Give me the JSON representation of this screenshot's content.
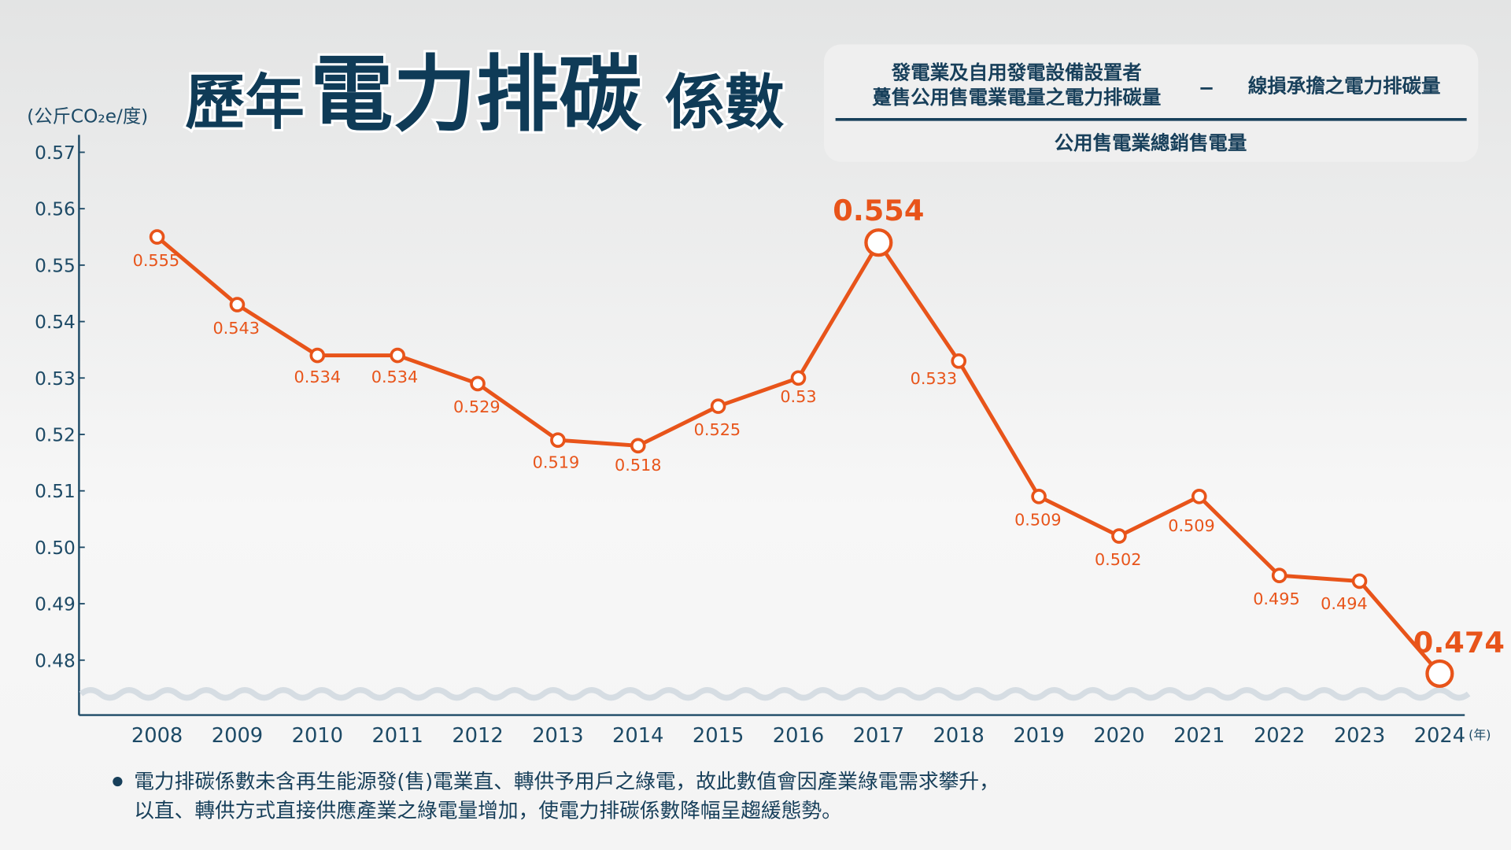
{
  "title": {
    "small1": "歷年",
    "big": "電力排碳",
    "small2": "係數"
  },
  "formula": {
    "numerator_line1": "發電業及自用發電設備設置者",
    "numerator_line2": "躉售公用售電業電量之電力排碳量",
    "minus": "−",
    "subtracted": "線損承擔之電力排碳量",
    "denominator": "公用售電業總銷售電量"
  },
  "notes": [
    "電力排碳係數未含再生能源發(售)電業直、轉供予用戶之綠電，故此數值會因產業綠電需求攀升，",
    "以直、轉供方式直接供應產業之綠電量增加，使電力排碳係數降幅呈趨緩態勢。"
  ],
  "colors": {
    "line": "#e8541a",
    "axis": "#1d4a66",
    "title": "#0f3b57",
    "background": "#e6e7e7"
  },
  "chart_data": {
    "type": "line",
    "ylabel": "(公斤CO₂e/度)",
    "xlabel_unit": "(年)",
    "ylim": [
      0.48,
      0.57
    ],
    "y_axis_break": true,
    "yticks": [
      "0.57",
      "0.56",
      "0.55",
      "0.54",
      "0.53",
      "0.52",
      "0.51",
      "0.50",
      "0.49",
      "0.48"
    ],
    "categories": [
      "2008",
      "2009",
      "2010",
      "2011",
      "2012",
      "2013",
      "2014",
      "2015",
      "2016",
      "2017",
      "2018",
      "2019",
      "2020",
      "2021",
      "2022",
      "2023",
      "2024"
    ],
    "values": [
      0.555,
      0.543,
      0.534,
      0.534,
      0.529,
      0.519,
      0.518,
      0.525,
      0.53,
      0.554,
      0.533,
      0.509,
      0.502,
      0.509,
      0.495,
      0.494,
      0.474
    ],
    "labels": [
      "0.555",
      "0.543",
      "0.534",
      "0.534",
      "0.529",
      "0.519",
      "0.518",
      "0.525",
      "0.53",
      "0.554",
      "0.533",
      "0.509",
      "0.502",
      "0.509",
      "0.495",
      "0.494",
      "0.474"
    ],
    "highlighted": [
      "2017",
      "2024"
    ],
    "grid": false
  }
}
